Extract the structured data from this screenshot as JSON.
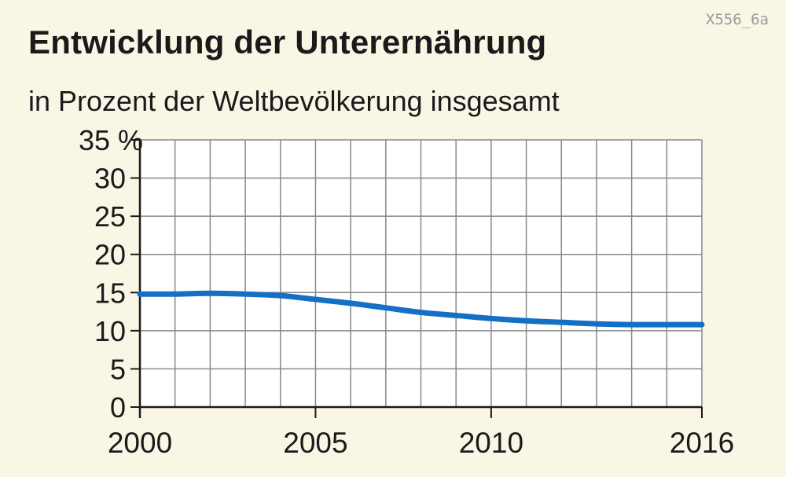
{
  "header": {
    "title": "Entwicklung der Unterernährung",
    "subtitle": "in Prozent der Weltbevölkerung insgesamt",
    "image_code": "X556_6a"
  },
  "colors": {
    "background": "#f9f6e6",
    "plot_background": "#ffffff",
    "grid": "#888888",
    "line": "#1470c4"
  },
  "chart_data": {
    "type": "line",
    "title": "Entwicklung der Unterernährung",
    "subtitle": "in Prozent der Weltbevölkerung insgesamt",
    "xlabel": "",
    "ylabel": "",
    "xlim": [
      2000,
      2016
    ],
    "ylim": [
      0,
      35
    ],
    "y_unit": "%",
    "x_ticks": [
      2000,
      2005,
      2010,
      2016
    ],
    "y_ticks": [
      0,
      5,
      10,
      15,
      20,
      25,
      30,
      35
    ],
    "y_tick_labels": [
      "0",
      "5",
      "10",
      "15",
      "20",
      "25",
      "30",
      "35 %"
    ],
    "grid": true,
    "x": [
      2000,
      2001,
      2002,
      2003,
      2004,
      2005,
      2006,
      2007,
      2008,
      2009,
      2010,
      2011,
      2012,
      2013,
      2014,
      2015,
      2016
    ],
    "series": [
      {
        "values": [
          14.8,
          14.8,
          14.9,
          14.8,
          14.6,
          14.1,
          13.6,
          13.0,
          12.4,
          12.0,
          11.6,
          11.3,
          11.1,
          10.9,
          10.8,
          10.8,
          10.8
        ]
      }
    ]
  }
}
